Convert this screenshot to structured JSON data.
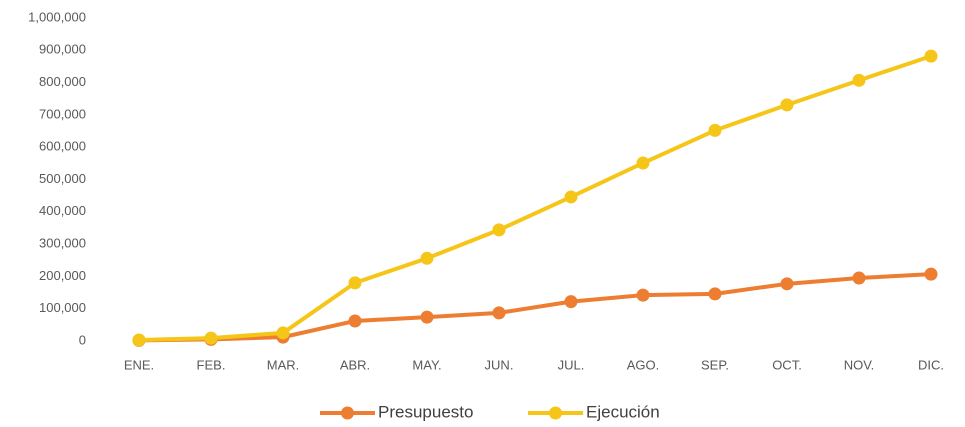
{
  "chart_data": {
    "type": "line",
    "categories": [
      "ENE.",
      "FEB.",
      "MAR.",
      "ABR.",
      "MAY.",
      "JUN.",
      "JUL.",
      "AGO.",
      "SEP.",
      "OCT.",
      "NOV.",
      "DIC."
    ],
    "series": [
      {
        "name": "Presupuesto",
        "color": "#ed7d31",
        "values": [
          2000,
          5000,
          12000,
          62000,
          74000,
          87000,
          122000,
          142000,
          146000,
          177000,
          195000,
          207000
        ]
      },
      {
        "name": "Ejecución",
        "color": "#f5c518",
        "values": [
          3000,
          9000,
          25000,
          180000,
          256000,
          344000,
          446000,
          551000,
          652000,
          731000,
          807000,
          882000
        ]
      }
    ],
    "ylim": [
      0,
      1000000
    ],
    "yticks": [
      0,
      {
        "value": 100000,
        "label": "100,000"
      },
      {
        "value": 200000,
        "label": "200,000"
      },
      {
        "value": 300000,
        "label": "300,000"
      },
      {
        "value": 400000,
        "label": "400,000"
      },
      {
        "value": 500000,
        "label": "500,000"
      },
      {
        "value": 600000,
        "label": "600,000"
      },
      {
        "value": 700000,
        "label": "700,000"
      },
      {
        "value": 800000,
        "label": "800,000"
      },
      {
        "value": 900000,
        "label": "900,000"
      },
      {
        "value": 1000000,
        "label": "1,000,000"
      }
    ],
    "grid": false,
    "legend": "bottom"
  }
}
